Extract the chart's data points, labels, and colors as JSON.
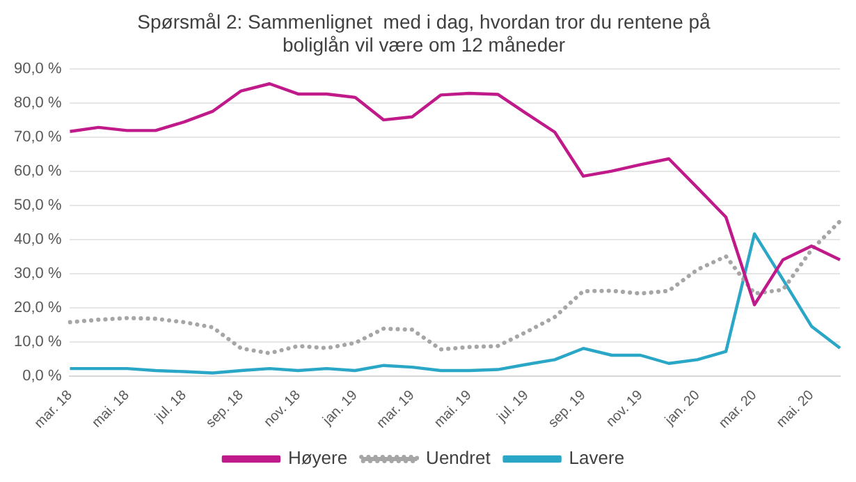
{
  "chart_data": {
    "type": "line",
    "title": "Spørsmål 2: Sammenlignet  med i dag, hvordan tror du rentene på boliglån vil være om 12 måneder",
    "categories": [
      "mar. 18",
      null,
      "mai. 18",
      null,
      "jul. 18",
      null,
      "sep. 18",
      null,
      "nov. 18",
      null,
      "jan. 19",
      null,
      "mar. 19",
      null,
      "mai. 19",
      null,
      "jul. 19",
      null,
      "sep. 19",
      null,
      "nov. 19",
      null,
      "jan. 20",
      null,
      "mar. 20",
      null,
      "mai. 20",
      null
    ],
    "series": [
      {
        "name": "Høyere",
        "color": "#c0198a",
        "line_style": "solid",
        "values": [
          71.7,
          72.9,
          72.0,
          72.0,
          74.5,
          77.6,
          83.6,
          85.7,
          82.7,
          82.7,
          81.7,
          75.1,
          76.0,
          82.4,
          82.9,
          82.6,
          77.0,
          71.5,
          58.6,
          60.1,
          62.0,
          63.7,
          55.2,
          46.6,
          20.9,
          34.1,
          38.1,
          34.1
        ]
      },
      {
        "name": "Uendret",
        "color": "#a6a6a6",
        "line_style": "dotted",
        "values": [
          15.8,
          16.5,
          17.0,
          16.8,
          15.8,
          14.3,
          8.1,
          6.7,
          8.8,
          8.2,
          9.7,
          13.9,
          13.6,
          7.8,
          8.5,
          8.8,
          12.9,
          17.3,
          24.9,
          25.0,
          24.2,
          25.0,
          31.2,
          35.1,
          24.2,
          25.3,
          37.0,
          45.4
        ]
      },
      {
        "name": "Lavere",
        "color": "#2aa6c6",
        "line_style": "solid",
        "values": [
          2.2,
          2.2,
          2.2,
          1.6,
          1.3,
          0.9,
          1.6,
          2.2,
          1.6,
          2.2,
          1.6,
          3.1,
          2.6,
          1.6,
          1.6,
          1.9,
          3.4,
          4.8,
          8.1,
          6.1,
          6.1,
          3.7,
          4.8,
          7.2,
          41.7,
          28.3,
          14.6,
          8.2
        ]
      }
    ],
    "ylim": [
      0,
      90
    ],
    "yticks": [
      {
        "value": 0,
        "label": "0,0 %"
      },
      {
        "value": 10,
        "label": "10,0 %"
      },
      {
        "value": 20,
        "label": "20,0 %"
      },
      {
        "value": 30,
        "label": "30,0 %"
      },
      {
        "value": 40,
        "label": "40,0 %"
      },
      {
        "value": 50,
        "label": "50,0 %"
      },
      {
        "value": 60,
        "label": "60,0 %"
      },
      {
        "value": 70,
        "label": "70,0 %"
      },
      {
        "value": 80,
        "label": "80,0 %"
      },
      {
        "value": 90,
        "label": "90,0 %"
      }
    ],
    "grid": "y",
    "legend": "bottom",
    "marker": "none"
  }
}
